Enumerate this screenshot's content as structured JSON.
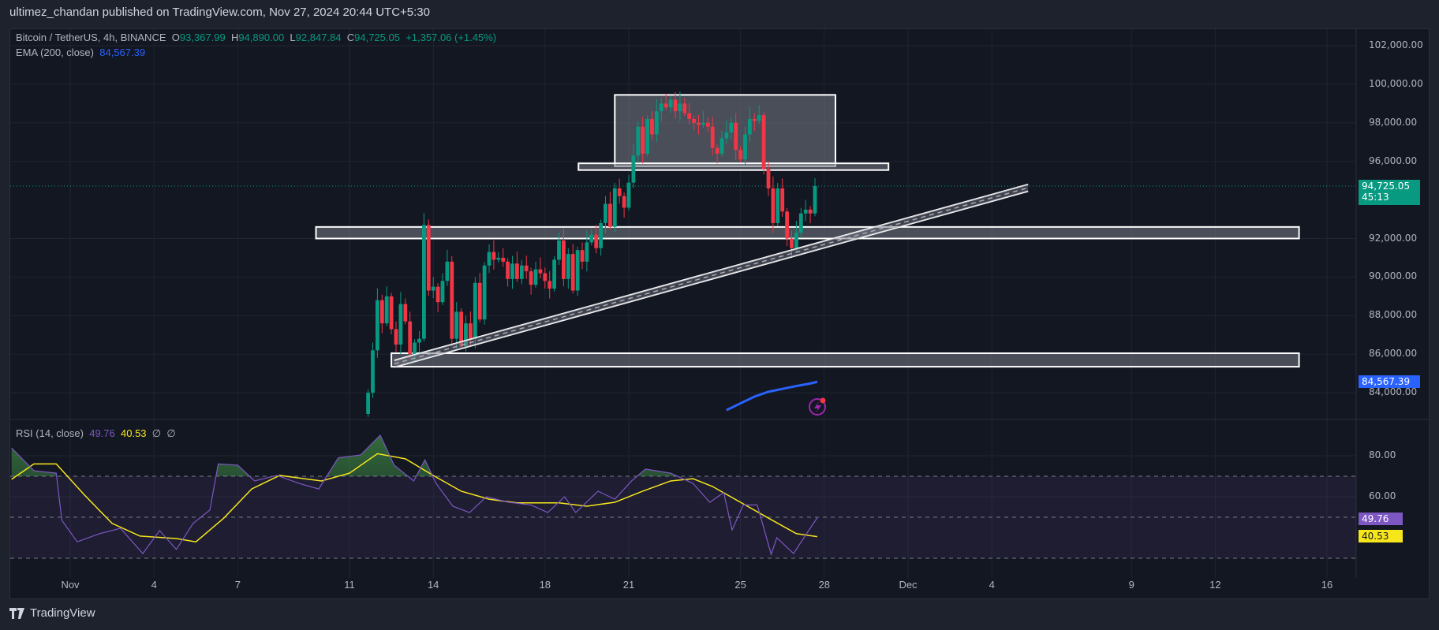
{
  "header": {
    "published": "ultimez_chandan published on TradingView.com, Nov 27, 2024 20:44 UTC+5:30"
  },
  "legend": {
    "symbol": "Bitcoin / TetherUS, 4h, BINANCE",
    "o_label": "O",
    "o": "93,367.99",
    "h_label": "H",
    "h": "94,890.00",
    "l_label": "L",
    "l": "92,847.84",
    "c_label": "C",
    "c": "94,725.05",
    "change": "+1,357.06 (+1.45%)",
    "ema_label": "EMA (200, close)",
    "ema_value": "84,567.39",
    "rsi_label": "RSI (14, close)",
    "rsi_value": "49.76",
    "rsi_ma_value": "40.53",
    "na1": "∅",
    "na2": "∅"
  },
  "price_axis": [
    "102,000.00",
    "100,000.00",
    "98,000.00",
    "96,000.00",
    "92,000.00",
    "90,000.00",
    "88,000.00",
    "86,000.00",
    "84,000.00"
  ],
  "price_tag": {
    "value": "94,725.05",
    "countdown": "45:13"
  },
  "ema_tag": "84,567.39",
  "rsi_axis": [
    "80.00",
    "60.00"
  ],
  "rsi_tags": {
    "rsi": "49.76",
    "ma": "40.53"
  },
  "date_axis": [
    "Nov",
    "4",
    "7",
    "11",
    "14",
    "18",
    "21",
    "25",
    "28",
    "Dec",
    "4",
    "9",
    "12",
    "16"
  ],
  "footer": {
    "brand": "TradingView"
  },
  "colors": {
    "up": "#089981",
    "down": "#f23645",
    "ema": "#2962ff",
    "rsi": "#7e57c2",
    "rsi_ma": "#f7e61c",
    "bg": "#131722"
  },
  "chart_data": {
    "type": "candlestick",
    "title": "Bitcoin / TetherUS, 4h, BINANCE",
    "start": "Nov 11 16:00",
    "interval_hours": 4,
    "close": [
      84000,
      86200,
      88800,
      87600,
      89000,
      87300,
      86500,
      88600,
      87700,
      86000,
      86600,
      86800,
      92700,
      89300,
      89500,
      88700,
      89800,
      90800,
      86800,
      88200,
      86400,
      87600,
      86800,
      89700,
      87800,
      90600,
      91300,
      90900,
      91000,
      90800,
      89900,
      90700,
      89900,
      90600,
      90300,
      89600,
      90400,
      90200,
      89800,
      89400,
      90900,
      91900,
      89900,
      91200,
      89300,
      91400,
      90800,
      91800,
      92200,
      91500,
      92800,
      93800,
      92600,
      94600,
      94200,
      93600,
      94900,
      96300,
      97800,
      96400,
      98200,
      97400,
      98600,
      99000,
      98800,
      99200,
      98600,
      99000,
      98500,
      98200,
      98000,
      97900,
      98000,
      97800,
      96700,
      96400,
      97200,
      97500,
      98000,
      96600,
      96100,
      97400,
      98200,
      98100,
      98400,
      95600,
      94600,
      92800,
      94600,
      93400,
      92000,
      91500,
      92300,
      93300,
      93500,
      93300,
      94725
    ],
    "first_open": 82900,
    "ylim": [
      83000,
      103000
    ],
    "ema": {
      "days": [
        24.5,
        25,
        25.5,
        26,
        26.5,
        27,
        27.5,
        27.75
      ],
      "values": [
        83100,
        83450,
        83800,
        84050,
        84200,
        84350,
        84480,
        84567
      ]
    },
    "zones": [
      {
        "name": "top-range",
        "from_day": 20.5,
        "to_day": 28.4,
        "low": 95750,
        "high": 99450
      },
      {
        "name": "support-line",
        "from_day": 19.2,
        "to_day": 30.3,
        "low": 95550,
        "high": 95900
      },
      {
        "name": "mid-zone",
        "from_day": 9.8,
        "to_day": 45,
        "low": 92000,
        "high": 92600
      },
      {
        "name": "low-zone",
        "from_day": 12.5,
        "to_day": 45,
        "low": 85350,
        "high": 86050
      }
    ],
    "channel": {
      "from_day": 12.6,
      "to_day": 35.3,
      "from_price": 85500,
      "to_price": 94630,
      "width": 350
    },
    "rsi": {
      "days": [
        -1.1,
        -0.3,
        0.5,
        0.7,
        1.25,
        2.05,
        2.8,
        3.6,
        4.2,
        4.8,
        5.4,
        6,
        6.3,
        7,
        7.6,
        8.4,
        9.2,
        9.9,
        10.6,
        11.4,
        12.1,
        12.6,
        13.3,
        13.7,
        14.1,
        14.7,
        15.3,
        15.9,
        16.7,
        17.5,
        18.1,
        18.7,
        19.1,
        19.9,
        20.5,
        21.1,
        21.6,
        22.5,
        23.3,
        23.9,
        24.4,
        24.7,
        25.1,
        25.6,
        26.1,
        26.3,
        26.9,
        27.4,
        27.75
      ],
      "values": [
        83.8,
        72.7,
        71.5,
        48.5,
        38,
        42,
        44.6,
        32.3,
        43.5,
        34.3,
        47,
        53.5,
        76,
        75.4,
        67.7,
        70.4,
        66.5,
        63.8,
        79,
        80.4,
        90,
        75.4,
        67.7,
        78,
        66.5,
        55.4,
        52.3,
        60,
        57.3,
        56,
        52.3,
        60,
        52.3,
        62.7,
        58.8,
        67.7,
        73.5,
        71.5,
        66.5,
        57.3,
        62,
        43.8,
        56,
        56,
        31.9,
        40,
        32.3,
        42.7,
        49.76
      ],
      "ma_days": [
        -1.1,
        -0.3,
        0.5,
        1.5,
        2.5,
        3.5,
        4.8,
        5.5,
        6.5,
        7.5,
        8.5,
        10,
        11,
        12,
        13,
        14,
        15,
        16,
        17,
        18.5,
        19.5,
        20.5,
        21.5,
        22.5,
        23.3,
        24,
        25,
        26,
        27,
        27.75
      ],
      "ma_values": [
        68.5,
        76,
        76,
        61,
        47,
        40.8,
        39.6,
        38,
        49.6,
        63.8,
        70.4,
        67.7,
        71.5,
        81,
        78.5,
        70.4,
        62.7,
        58.8,
        57,
        57,
        55.4,
        57.3,
        62.7,
        67.7,
        68.8,
        65,
        57.3,
        49.6,
        42,
        40.53
      ],
      "levels": [
        70,
        50,
        30
      ]
    }
  }
}
